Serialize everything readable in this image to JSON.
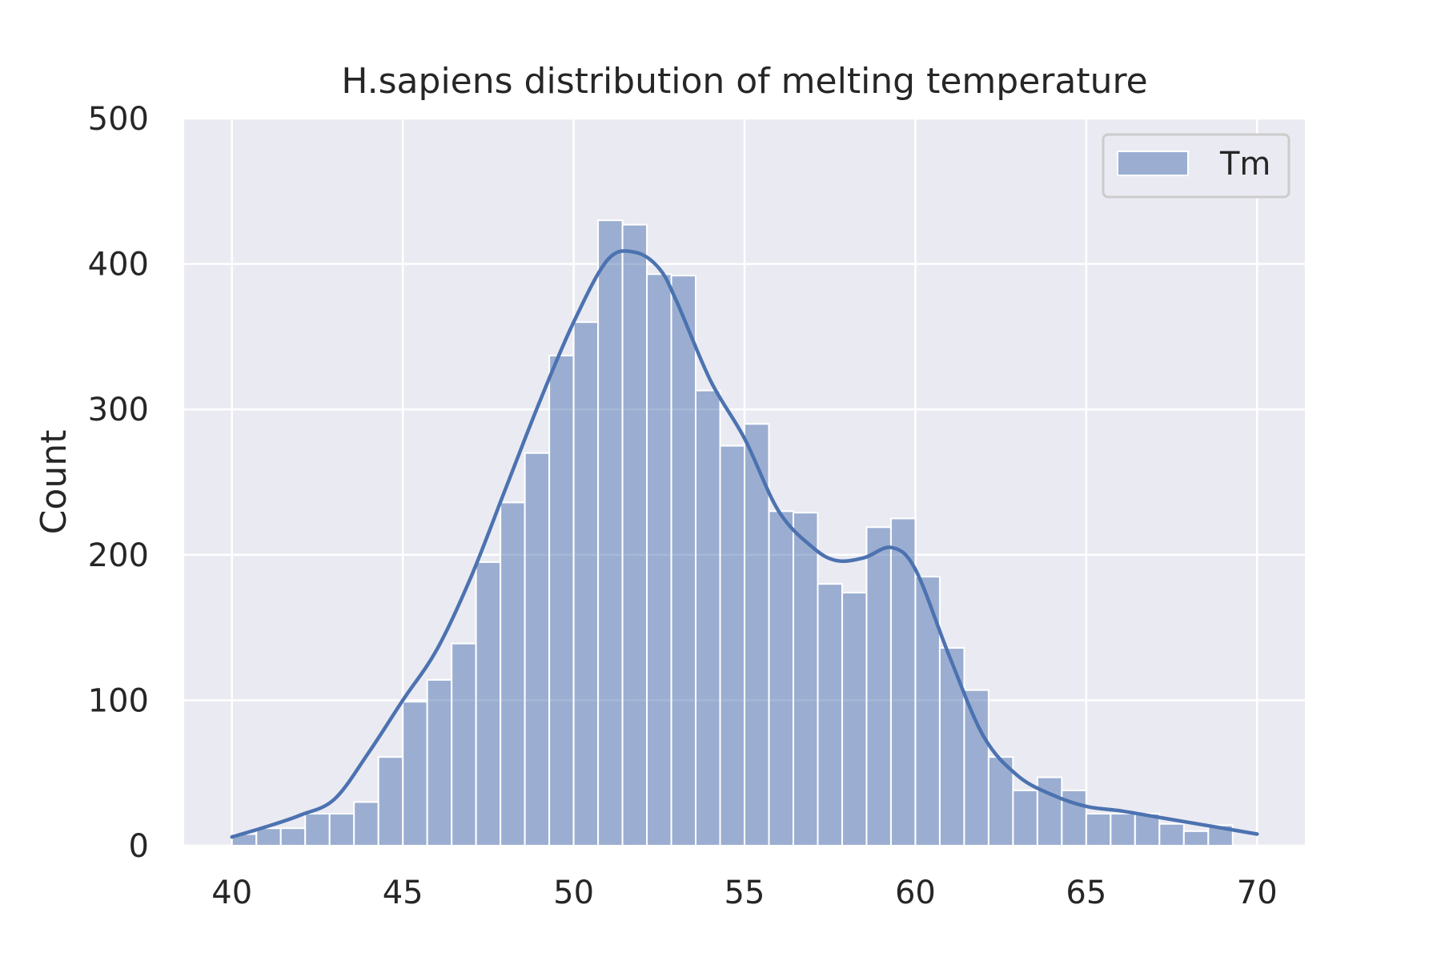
{
  "chart_data": {
    "type": "bar",
    "title": "H.sapiens distribution of melting temperature",
    "xlabel": "",
    "ylabel": "Count",
    "xlim": [
      38.6,
      71.4
    ],
    "ylim": [
      0,
      500
    ],
    "xticks": [
      40,
      45,
      50,
      55,
      60,
      65,
      70
    ],
    "yticks": [
      0,
      100,
      200,
      300,
      400,
      500
    ],
    "grid": true,
    "legend_position": "top-right",
    "bins": {
      "start": 40.0,
      "width": 0.7143,
      "counts": [
        8,
        12,
        12,
        22,
        22,
        30,
        61,
        99,
        114,
        139,
        195,
        236,
        270,
        337,
        360,
        430,
        427,
        393,
        392,
        313,
        275,
        290,
        230,
        229,
        180,
        174,
        219,
        225,
        185,
        136,
        107,
        61,
        38,
        47,
        38,
        22,
        22,
        22,
        15,
        10,
        14
      ]
    },
    "series": [
      {
        "name": "Tm",
        "kind": "histogram",
        "color": "#4c72b0",
        "fill_opacity": 0.5
      },
      {
        "kind": "kde",
        "color": "#4c72b0",
        "x": [
          40,
          41,
          42,
          43,
          44,
          45,
          46,
          47,
          48,
          49,
          50,
          51,
          51.8,
          52.5,
          53,
          54,
          55,
          56,
          57,
          57.7,
          58.5,
          59.3,
          60,
          61,
          62,
          63,
          64,
          65,
          66,
          67,
          68,
          69,
          70
        ],
        "y": [
          6,
          13,
          21,
          32,
          64,
          100,
          135,
          185,
          245,
          305,
          360,
          403,
          408,
          397,
          375,
          320,
          280,
          230,
          205,
          196,
          198,
          205,
          190,
          130,
          75,
          48,
          35,
          27,
          24,
          20,
          16,
          12,
          8
        ]
      }
    ]
  }
}
